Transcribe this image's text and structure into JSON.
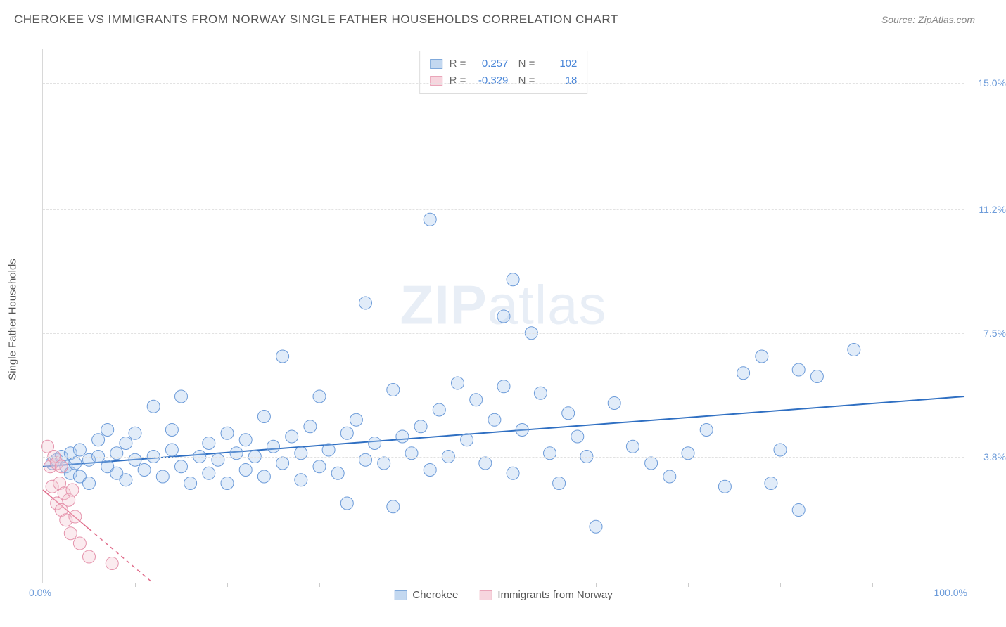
{
  "header": {
    "title": "CHEROKEE VS IMMIGRANTS FROM NORWAY SINGLE FATHER HOUSEHOLDS CORRELATION CHART",
    "source": "Source: ZipAtlas.com"
  },
  "watermark": {
    "bold": "ZIP",
    "light": "atlas"
  },
  "chart": {
    "type": "scatter",
    "y_axis_title": "Single Father Households",
    "xlim": [
      0,
      100
    ],
    "ylim": [
      0,
      16
    ],
    "x_origin_label": "0.0%",
    "x_max_label": "100.0%",
    "y_ticks": [
      {
        "val": 3.8,
        "label": "3.8%"
      },
      {
        "val": 7.5,
        "label": "7.5%"
      },
      {
        "val": 11.2,
        "label": "11.2%"
      },
      {
        "val": 15.0,
        "label": "15.0%"
      }
    ],
    "x_minor_ticks": [
      10,
      20,
      30,
      40,
      50,
      60,
      70,
      80,
      90
    ],
    "background_color": "#ffffff",
    "grid_color": "#e2e2e2",
    "marker_radius": 9,
    "marker_opacity": 0.35,
    "series": [
      {
        "name": "Cherokee",
        "color_fill": "#a9c8ed",
        "color_stroke": "#6c9bd9",
        "swatch_fill": "#c3d8f0",
        "swatch_stroke": "#7fa9db",
        "R": "0.257",
        "N": "102",
        "trend": {
          "x1": 0,
          "y1": 3.5,
          "x2": 100,
          "y2": 5.6,
          "color": "#2f6fc2",
          "width": 2
        },
        "points": [
          [
            1,
            3.6
          ],
          [
            1.5,
            3.7
          ],
          [
            2,
            3.8
          ],
          [
            2.5,
            3.5
          ],
          [
            3,
            3.9
          ],
          [
            3,
            3.3
          ],
          [
            3.5,
            3.6
          ],
          [
            4,
            4.0
          ],
          [
            4,
            3.2
          ],
          [
            5,
            3.7
          ],
          [
            5,
            3.0
          ],
          [
            6,
            3.8
          ],
          [
            6,
            4.3
          ],
          [
            7,
            3.5
          ],
          [
            7,
            4.6
          ],
          [
            8,
            3.3
          ],
          [
            8,
            3.9
          ],
          [
            9,
            4.2
          ],
          [
            9,
            3.1
          ],
          [
            10,
            3.7
          ],
          [
            10,
            4.5
          ],
          [
            11,
            3.4
          ],
          [
            12,
            3.8
          ],
          [
            12,
            5.3
          ],
          [
            13,
            3.2
          ],
          [
            14,
            4.0
          ],
          [
            14,
            4.6
          ],
          [
            15,
            5.6
          ],
          [
            15,
            3.5
          ],
          [
            16,
            3.0
          ],
          [
            17,
            3.8
          ],
          [
            18,
            4.2
          ],
          [
            18,
            3.3
          ],
          [
            19,
            3.7
          ],
          [
            20,
            4.5
          ],
          [
            20,
            3.0
          ],
          [
            21,
            3.9
          ],
          [
            22,
            4.3
          ],
          [
            22,
            3.4
          ],
          [
            23,
            3.8
          ],
          [
            24,
            5.0
          ],
          [
            24,
            3.2
          ],
          [
            25,
            4.1
          ],
          [
            26,
            3.6
          ],
          [
            26,
            6.8
          ],
          [
            27,
            4.4
          ],
          [
            28,
            3.9
          ],
          [
            28,
            3.1
          ],
          [
            29,
            4.7
          ],
          [
            30,
            3.5
          ],
          [
            30,
            5.6
          ],
          [
            31,
            4.0
          ],
          [
            32,
            3.3
          ],
          [
            33,
            4.5
          ],
          [
            33,
            2.4
          ],
          [
            34,
            4.9
          ],
          [
            35,
            3.7
          ],
          [
            35,
            8.4
          ],
          [
            36,
            4.2
          ],
          [
            37,
            3.6
          ],
          [
            38,
            5.8
          ],
          [
            38,
            2.3
          ],
          [
            39,
            4.4
          ],
          [
            40,
            3.9
          ],
          [
            41,
            4.7
          ],
          [
            42,
            3.4
          ],
          [
            42,
            10.9
          ],
          [
            43,
            5.2
          ],
          [
            44,
            3.8
          ],
          [
            45,
            6.0
          ],
          [
            46,
            4.3
          ],
          [
            47,
            5.5
          ],
          [
            48,
            3.6
          ],
          [
            49,
            4.9
          ],
          [
            50,
            8.0
          ],
          [
            50,
            5.9
          ],
          [
            51,
            3.3
          ],
          [
            51,
            9.1
          ],
          [
            52,
            4.6
          ],
          [
            53,
            7.5
          ],
          [
            54,
            5.7
          ],
          [
            55,
            3.9
          ],
          [
            56,
            3.0
          ],
          [
            57,
            5.1
          ],
          [
            58,
            4.4
          ],
          [
            59,
            3.8
          ],
          [
            60,
            1.7
          ],
          [
            62,
            5.4
          ],
          [
            64,
            4.1
          ],
          [
            66,
            3.6
          ],
          [
            68,
            3.2
          ],
          [
            70,
            3.9
          ],
          [
            72,
            4.6
          ],
          [
            74,
            2.9
          ],
          [
            76,
            6.3
          ],
          [
            78,
            6.8
          ],
          [
            79,
            3.0
          ],
          [
            80,
            4.0
          ],
          [
            82,
            2.2
          ],
          [
            84,
            6.2
          ],
          [
            88,
            7.0
          ],
          [
            82,
            6.4
          ]
        ]
      },
      {
        "name": "Immigrants from Norway",
        "color_fill": "#f3c5d1",
        "color_stroke": "#e593ac",
        "swatch_fill": "#f7d5de",
        "swatch_stroke": "#eaa5b9",
        "R": "-0.329",
        "N": "18",
        "trend": {
          "x1": 0,
          "y1": 2.8,
          "x2": 12,
          "y2": 0,
          "color": "#e06b8a",
          "width": 1.5,
          "dash_after": 5
        },
        "points": [
          [
            0.5,
            4.1
          ],
          [
            0.8,
            3.5
          ],
          [
            1,
            2.9
          ],
          [
            1.2,
            3.8
          ],
          [
            1.5,
            2.4
          ],
          [
            1.5,
            3.6
          ],
          [
            1.8,
            3.0
          ],
          [
            2,
            2.2
          ],
          [
            2,
            3.5
          ],
          [
            2.3,
            2.7
          ],
          [
            2.5,
            1.9
          ],
          [
            2.8,
            2.5
          ],
          [
            3,
            1.5
          ],
          [
            3.2,
            2.8
          ],
          [
            3.5,
            2.0
          ],
          [
            4,
            1.2
          ],
          [
            5,
            0.8
          ],
          [
            7.5,
            0.6
          ]
        ]
      }
    ]
  },
  "legend_bottom": [
    {
      "label": "Cherokee",
      "fill": "#c3d8f0",
      "stroke": "#7fa9db"
    },
    {
      "label": "Immigrants from Norway",
      "fill": "#f7d5de",
      "stroke": "#eaa5b9"
    }
  ]
}
